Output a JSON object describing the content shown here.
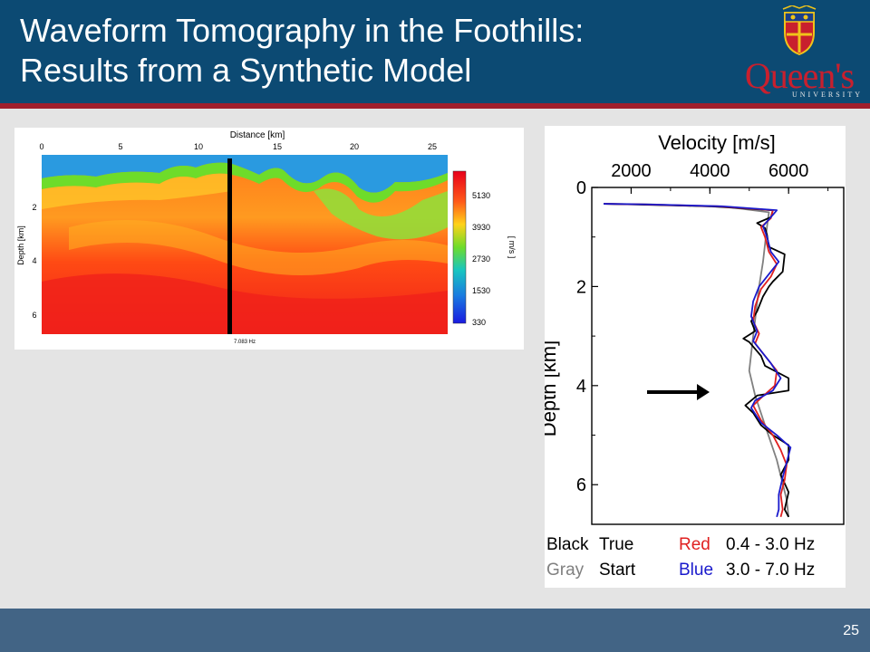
{
  "slide": {
    "title_line1": "Waveform Tomography in the Foothills:",
    "title_line2": "Results from a Synthetic Model",
    "page_number": "25"
  },
  "logo": {
    "name": "Queen's",
    "subtitle": "UNIVERSITY"
  },
  "colors": {
    "header": "#0c4a73",
    "accent": "#a01e2c",
    "footer": "#426485",
    "true": "#000000",
    "start": "#808080",
    "low_band": "#e02020",
    "high_band": "#1a1acc"
  },
  "velocity_model": {
    "x_axis_label": "Distance [km]",
    "x_ticks": [
      "0",
      "5",
      "10",
      "15",
      "20",
      "25"
    ],
    "y_axis_label": "Depth [km]",
    "y_ticks": [
      "2",
      "4",
      "6"
    ],
    "colorbar_unit": "[ m/s ]",
    "colorbar_ticks": [
      "5130",
      "3930",
      "2730",
      "1530",
      "330"
    ],
    "frequency_label": "7.083 Hz"
  },
  "chart_data": {
    "type": "line",
    "title": "Velocity [m/s]",
    "xlabel": "Velocity [m/s]",
    "ylabel": "Depth [km]",
    "xlim": [
      1000,
      7400
    ],
    "ylim": [
      0,
      6.8
    ],
    "x_ticks": [
      "2000",
      "4000",
      "6000"
    ],
    "y_ticks": [
      "0",
      "2",
      "4",
      "6"
    ],
    "series": [
      {
        "name": "True",
        "color": "#000000",
        "points": [
          [
            1300,
            0.33
          ],
          [
            1900,
            0.34
          ],
          [
            4000,
            0.38
          ],
          [
            5600,
            0.46
          ],
          [
            5550,
            0.6
          ],
          [
            5200,
            0.72
          ],
          [
            5400,
            0.82
          ],
          [
            5450,
            0.95
          ],
          [
            5500,
            1.2
          ],
          [
            5900,
            1.35
          ],
          [
            5850,
            1.7
          ],
          [
            5600,
            1.9
          ],
          [
            5500,
            2.0
          ],
          [
            5350,
            2.2
          ],
          [
            5200,
            2.5
          ],
          [
            5050,
            2.7
          ],
          [
            5150,
            2.9
          ],
          [
            4850,
            3.05
          ],
          [
            5000,
            3.12
          ],
          [
            5300,
            3.4
          ],
          [
            5400,
            3.6
          ],
          [
            6000,
            3.85
          ],
          [
            6000,
            4.1
          ],
          [
            5200,
            4.2
          ],
          [
            4900,
            4.4
          ],
          [
            5100,
            4.55
          ],
          [
            5300,
            4.8
          ],
          [
            5600,
            5.0
          ],
          [
            6000,
            5.2
          ],
          [
            6000,
            5.5
          ],
          [
            5800,
            5.8
          ],
          [
            6000,
            6.15
          ],
          [
            5900,
            6.5
          ],
          [
            6000,
            6.65
          ]
        ]
      },
      {
        "name": "Start",
        "color": "#808080",
        "points": [
          [
            1300,
            0.33
          ],
          [
            2500,
            0.34
          ],
          [
            4500,
            0.4
          ],
          [
            5500,
            0.5
          ],
          [
            5450,
            0.8
          ],
          [
            5350,
            1.5
          ],
          [
            5250,
            2.0
          ],
          [
            5100,
            3.0
          ],
          [
            5000,
            3.7
          ],
          [
            5150,
            4.2
          ],
          [
            5400,
            4.8
          ],
          [
            5700,
            5.5
          ],
          [
            5950,
            6.3
          ],
          [
            6000,
            6.65
          ]
        ]
      },
      {
        "name": "0.4 - 3.0 Hz",
        "color": "#e02020",
        "points": [
          [
            1300,
            0.33
          ],
          [
            2200,
            0.34
          ],
          [
            4200,
            0.38
          ],
          [
            5600,
            0.46
          ],
          [
            5550,
            0.62
          ],
          [
            5300,
            0.8
          ],
          [
            5400,
            1.0
          ],
          [
            5500,
            1.3
          ],
          [
            5700,
            1.55
          ],
          [
            5550,
            1.8
          ],
          [
            5300,
            2.05
          ],
          [
            5150,
            2.4
          ],
          [
            5100,
            2.7
          ],
          [
            5250,
            2.95
          ],
          [
            5150,
            3.15
          ],
          [
            5400,
            3.4
          ],
          [
            5700,
            3.7
          ],
          [
            5650,
            4.0
          ],
          [
            5300,
            4.25
          ],
          [
            5100,
            4.4
          ],
          [
            5300,
            4.7
          ],
          [
            5600,
            5.0
          ],
          [
            5800,
            5.3
          ],
          [
            5950,
            5.6
          ],
          [
            5900,
            5.9
          ],
          [
            5800,
            6.2
          ],
          [
            5850,
            6.5
          ],
          [
            5800,
            6.65
          ]
        ]
      },
      {
        "name": "3.0 - 7.0 Hz",
        "color": "#1a1acc",
        "points": [
          [
            1300,
            0.33
          ],
          [
            2300,
            0.34
          ],
          [
            4300,
            0.38
          ],
          [
            5700,
            0.46
          ],
          [
            5550,
            0.6
          ],
          [
            5350,
            0.78
          ],
          [
            5450,
            1.0
          ],
          [
            5550,
            1.3
          ],
          [
            5750,
            1.5
          ],
          [
            5500,
            1.75
          ],
          [
            5250,
            2.0
          ],
          [
            5100,
            2.3
          ],
          [
            5050,
            2.6
          ],
          [
            5200,
            2.9
          ],
          [
            5100,
            3.1
          ],
          [
            5300,
            3.3
          ],
          [
            5550,
            3.55
          ],
          [
            5800,
            3.85
          ],
          [
            5600,
            4.1
          ],
          [
            5150,
            4.3
          ],
          [
            5050,
            4.45
          ],
          [
            5300,
            4.75
          ],
          [
            5700,
            5.0
          ],
          [
            6050,
            5.25
          ],
          [
            5950,
            5.55
          ],
          [
            5850,
            5.85
          ],
          [
            5750,
            6.2
          ],
          [
            5750,
            6.5
          ],
          [
            5700,
            6.65
          ]
        ]
      }
    ],
    "annotation": "arrow pointing to low-velocity zone near 4.1 km"
  },
  "legend": {
    "row1": {
      "color_name": "Black",
      "label": "True",
      "band_color_name": "Red",
      "band": "0.4 - 3.0 Hz"
    },
    "row2": {
      "color_name": "Gray",
      "label": "Start",
      "band_color_name": "Blue",
      "band": "3.0 - 7.0 Hz"
    }
  }
}
